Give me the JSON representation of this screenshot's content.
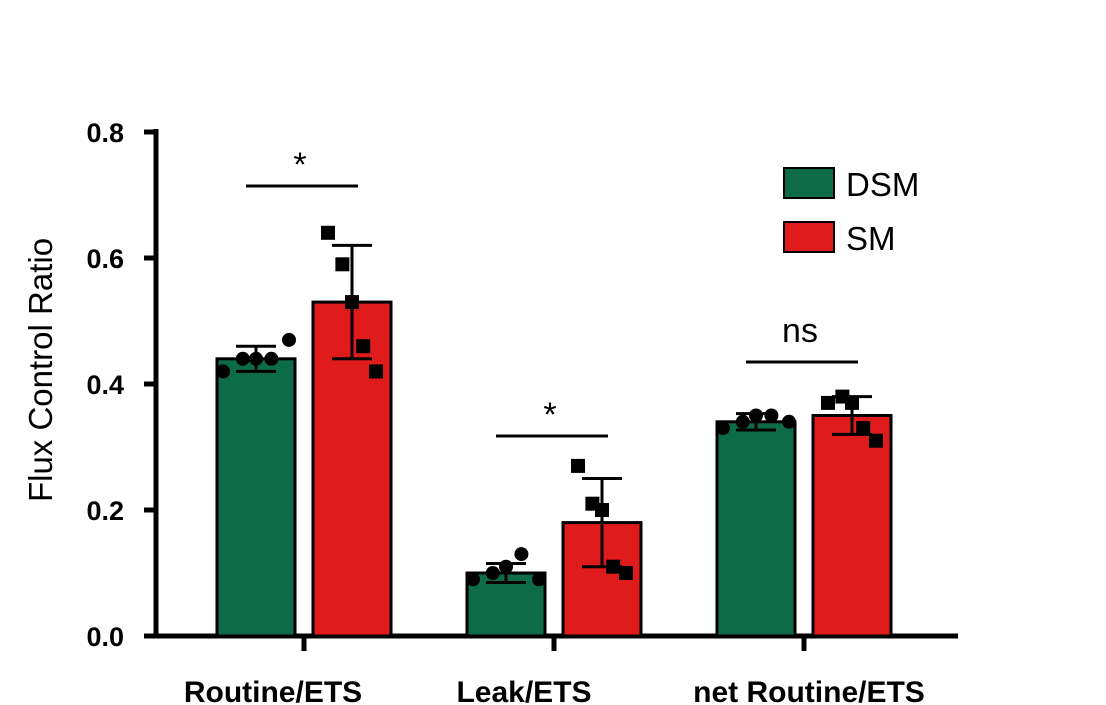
{
  "chart_data": {
    "type": "bar",
    "ylabel": "Flux Control Ratio",
    "xlabel": "",
    "ylim": [
      0,
      0.8
    ],
    "yticks": [
      "0.0",
      "0.2",
      "0.4",
      "0.6",
      "0.8"
    ],
    "categories": [
      "Routine/ETS",
      "Leak/ETS",
      "net Routine/ETS"
    ],
    "series": [
      {
        "name": "DSM",
        "color": "#0e6b47",
        "marker": "circle",
        "values": [
          0.44,
          0.1,
          0.34
        ],
        "errors": [
          0.02,
          0.015,
          0.013
        ],
        "points": [
          [
            0.42,
            0.44,
            0.44,
            0.44,
            0.47
          ],
          [
            0.09,
            0.1,
            0.11,
            0.13,
            0.09
          ],
          [
            0.33,
            0.34,
            0.35,
            0.35,
            0.34
          ]
        ]
      },
      {
        "name": "SM",
        "color": "#e01b1b",
        "marker": "square",
        "values": [
          0.53,
          0.18,
          0.35
        ],
        "errors": [
          0.09,
          0.07,
          0.03
        ],
        "points": [
          [
            0.64,
            0.59,
            0.53,
            0.46,
            0.42
          ],
          [
            0.27,
            0.21,
            0.2,
            0.11,
            0.1
          ],
          [
            0.37,
            0.38,
            0.37,
            0.33,
            0.31
          ]
        ]
      }
    ],
    "significance": [
      "*",
      "*",
      "ns"
    ],
    "legend": "top-right",
    "grid": false
  }
}
